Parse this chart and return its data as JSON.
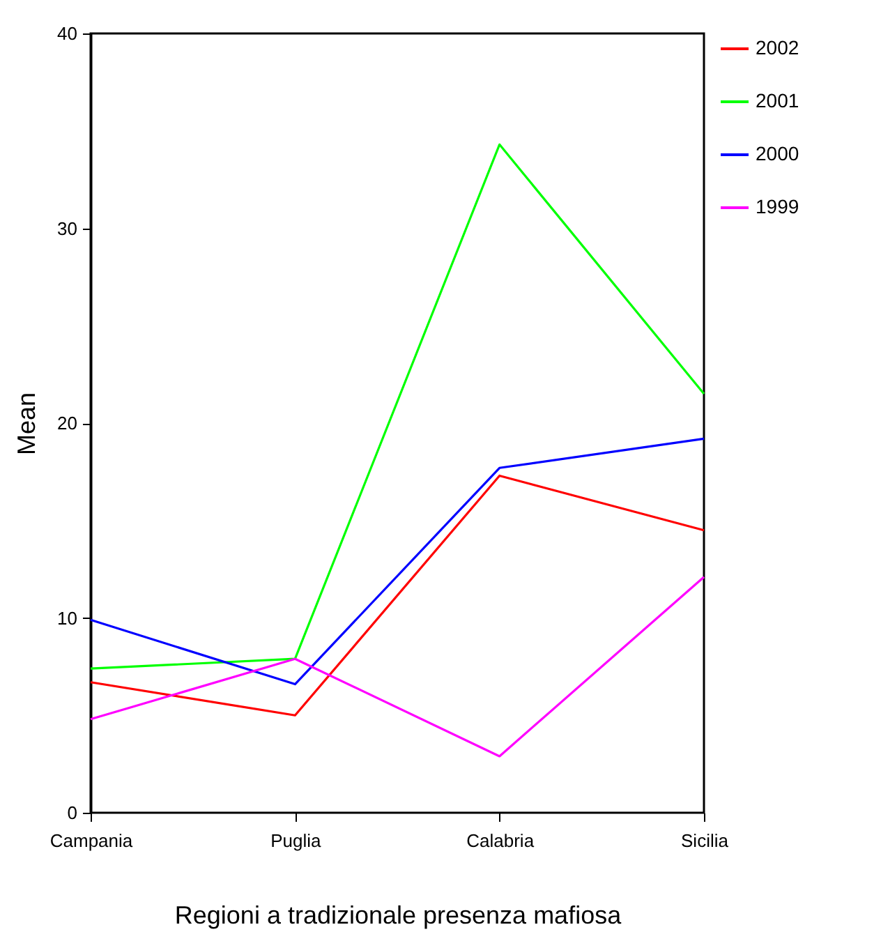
{
  "chart_data": {
    "type": "line",
    "xlabel": "Regioni a tradizionale presenza mafiosa",
    "ylabel": "Mean",
    "categories": [
      "Campania",
      "Puglia",
      "Calabria",
      "Sicilia"
    ],
    "series": [
      {
        "name": "2002",
        "color": "#ff0000",
        "values": [
          6.7,
          5.0,
          17.3,
          14.5
        ]
      },
      {
        "name": "2001",
        "color": "#00ff00",
        "values": [
          7.4,
          7.9,
          34.3,
          21.5
        ]
      },
      {
        "name": "2000",
        "color": "#0000ff",
        "values": [
          9.9,
          6.6,
          17.7,
          19.2
        ]
      },
      {
        "name": "1999",
        "color": "#ff00ff",
        "values": [
          4.8,
          7.9,
          2.9,
          12.1
        ]
      }
    ],
    "ylim": [
      0,
      40
    ],
    "yticks": [
      0,
      10,
      20,
      30,
      40
    ],
    "grid": false,
    "legend": "right",
    "marker": "none",
    "line_style": "solid"
  }
}
